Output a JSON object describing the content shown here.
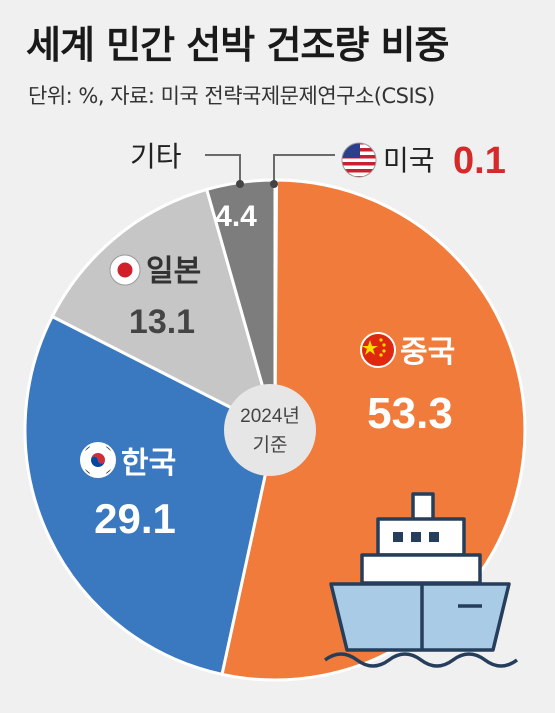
{
  "title": "세계 민간 선박 건조량 비중",
  "subtitle": "단위: %, 자료: 미국 전략국제문제연구소(CSIS)",
  "center_label": [
    "2024년",
    "기준"
  ],
  "chart_data": {
    "type": "pie",
    "title": "세계 민간 선박 건조량 비중",
    "unit": "%",
    "slices": [
      {
        "label": "미국",
        "value": 0.1,
        "value_label": "0.1",
        "color": "#c0242c",
        "flag": "us-flag-icon"
      },
      {
        "label": "중국",
        "value": 53.3,
        "value_label": "53.3",
        "color": "#f07b3a",
        "flag": "china-flag-icon"
      },
      {
        "label": "한국",
        "value": 29.1,
        "value_label": "29.1",
        "color": "#3a79bf",
        "flag": "korea-flag-icon"
      },
      {
        "label": "일본",
        "value": 13.1,
        "value_label": "13.1",
        "color": "#c6c6c6",
        "flag": "japan-flag-icon"
      },
      {
        "label": "기타",
        "value": 4.4,
        "value_label": "4.4",
        "color": "#7d7d7d",
        "flag": ""
      }
    ]
  },
  "colors": {
    "highlight_value": "#d42a2a",
    "ship_hull": "#a9cbe6",
    "ship_outline": "#243e5c"
  },
  "icons": [
    "ship-icon",
    "us-flag-icon",
    "china-flag-icon",
    "korea-flag-icon",
    "japan-flag-icon"
  ]
}
